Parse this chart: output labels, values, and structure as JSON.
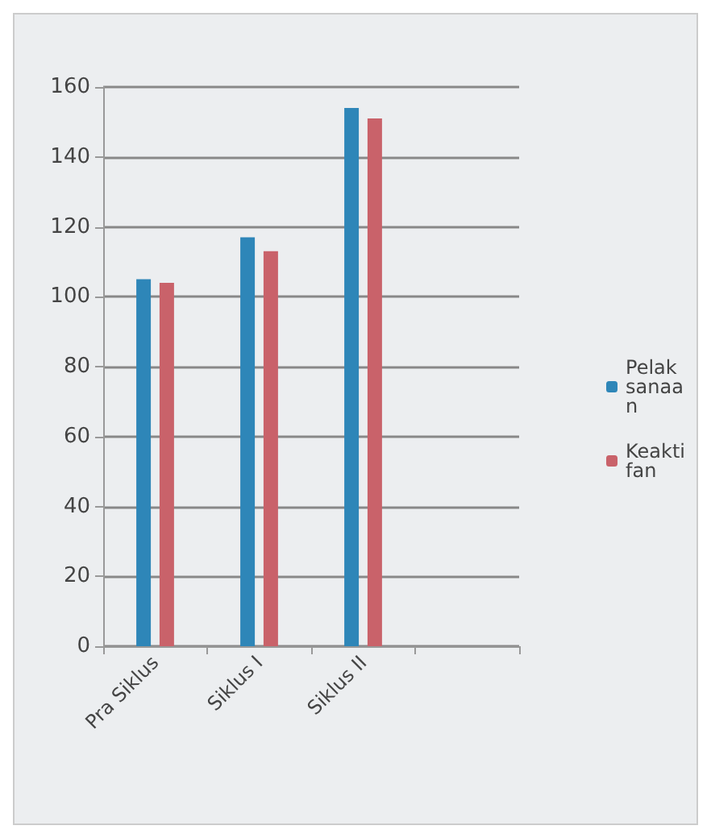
{
  "chart_data": {
    "type": "bar",
    "categories": [
      "Pra Siklus",
      "Siklus I",
      "Siklus II",
      null
    ],
    "series": [
      {
        "name": "Pelaksanaan",
        "color": "#2e86b8",
        "values": [
          105,
          117,
          154,
          null
        ]
      },
      {
        "name": "Keaktifan",
        "color": "#c9626a",
        "values": [
          104,
          113,
          151,
          null
        ]
      }
    ],
    "ylim": [
      0,
      160
    ],
    "yticks": [
      0,
      20,
      40,
      60,
      80,
      100,
      120,
      140,
      160
    ],
    "grid": "y",
    "legend": "right"
  }
}
